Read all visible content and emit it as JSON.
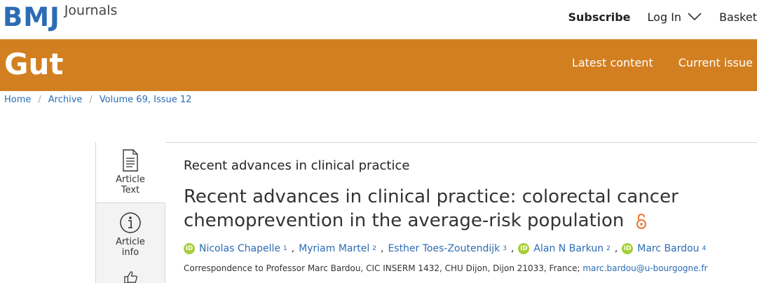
{
  "header": {
    "logo_main": "BMJ",
    "logo_sub": "Journals",
    "subscribe_label": "Subscribe",
    "login_label": "Log In",
    "basket_label": "Basket"
  },
  "journal": {
    "name": "Gut",
    "nav": [
      "Latest content",
      "Current issue"
    ],
    "bar_color": "#d27f21"
  },
  "breadcrumb": [
    "Home",
    "Archive",
    "Volume 69, Issue 12"
  ],
  "side_tabs": [
    {
      "label_line1": "Article",
      "label_line2": "Text",
      "icon": "document-icon"
    },
    {
      "label_line1": "Article",
      "label_line2": "info",
      "icon": "info-icon"
    },
    {
      "label_line1": "",
      "label_line2": "",
      "icon": "thumbs-up-icon"
    }
  ],
  "article": {
    "kicker": "Recent advances in clinical practice",
    "title": "Recent advances in clinical practice: colorectal cancer chemoprevention in the average-risk population",
    "open_access_icon": "open-access-icon",
    "authors": [
      {
        "name": "Nicolas Chapelle",
        "sup": "1",
        "orcid": true
      },
      {
        "name": "Myriam Martel",
        "sup": "2",
        "orcid": false
      },
      {
        "name": "Esther Toes-Zoutendijk",
        "sup": "3",
        "orcid": false
      },
      {
        "name": "Alan N Barkun",
        "sup": "2",
        "orcid": true
      },
      {
        "name": "Marc Bardou",
        "sup": "4",
        "orcid": true
      }
    ],
    "correspondence_text": "Correspondence to Professor Marc Bardou, CIC INSERM 1432, CHU Dijon, Dijon 21033, France;",
    "correspondence_email": "marc.bardou@u-bourgogne.fr"
  },
  "colors": {
    "link_blue": "#2b6cb5",
    "orcid_green": "#a6ce39",
    "open_access_orange": "#e8772e"
  }
}
